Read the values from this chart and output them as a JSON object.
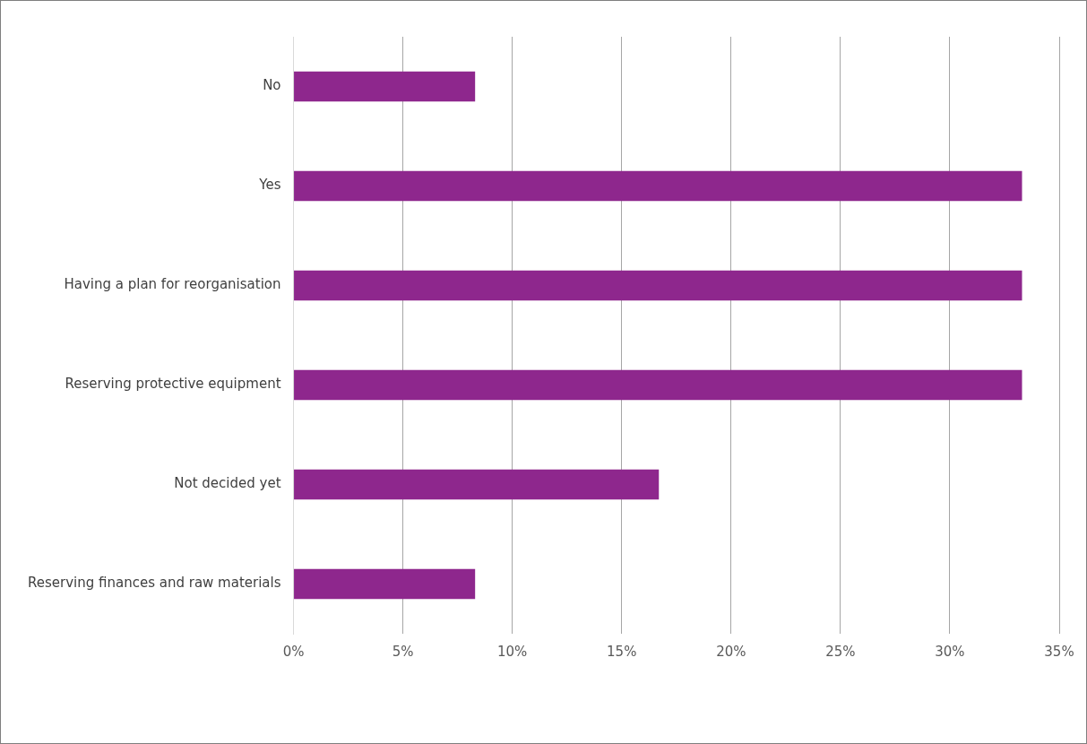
{
  "chart_data": {
    "type": "bar",
    "orientation": "horizontal",
    "categories": [
      "No",
      "Yes",
      "Having a plan for reorganisation",
      "Reserving protective equipment",
      "Not decided yet",
      "Reserving finances and raw materials"
    ],
    "values": [
      8.3,
      33.3,
      33.3,
      33.3,
      16.7,
      8.3
    ],
    "color": "#8e278d",
    "xlim": [
      0,
      35
    ],
    "xticks": [
      {
        "value": 0,
        "label": "0%"
      },
      {
        "value": 5,
        "label": "5%"
      },
      {
        "value": 10,
        "label": "10%"
      },
      {
        "value": 15,
        "label": "15%"
      },
      {
        "value": 20,
        "label": "20%"
      },
      {
        "value": 25,
        "label": "25%"
      },
      {
        "value": 30,
        "label": "30%"
      },
      {
        "value": 35,
        "label": "35%"
      }
    ],
    "grid": "x",
    "legend": false
  }
}
